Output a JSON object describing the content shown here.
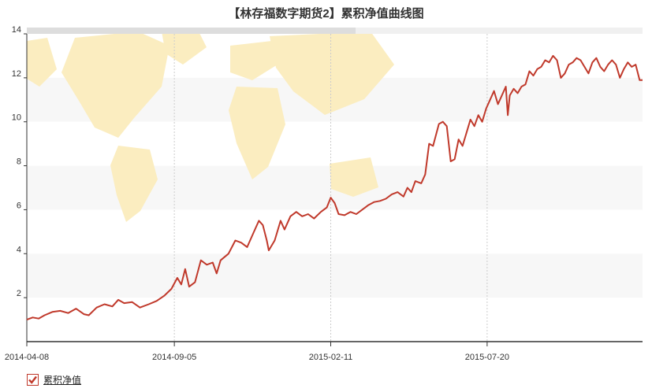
{
  "colors": {
    "line": "#c0392b",
    "band": "#f7f7f7",
    "grid": "#cccccc",
    "axis": "#333333",
    "scrollbar": "#dddddd",
    "map": "#fbedc0"
  },
  "legend": {
    "label": "累积净值",
    "checked": true
  },
  "chart_data": {
    "type": "line",
    "title": "【林存福数字期货2】累积净值曲线图",
    "xlabel": "",
    "ylabel": "",
    "x_ticks": [
      "2014-04-08",
      "2014-09-05",
      "2015-02-11",
      "2015-07-20"
    ],
    "xlim": [
      "2014-04-08",
      "2015-12-25"
    ],
    "y_ticks": [
      2,
      4,
      6,
      8,
      10,
      12,
      14
    ],
    "ylim": [
      0,
      14
    ],
    "grid": "vertical dotted at x ticks, alternating horizontal bands",
    "legend_position": "bottom-left",
    "series": [
      {
        "name": "累积净值",
        "points": [
          [
            "2014-04-08",
            1.0
          ],
          [
            "2014-04-14",
            1.1
          ],
          [
            "2014-04-20",
            1.05
          ],
          [
            "2014-04-26",
            1.2
          ],
          [
            "2014-05-04",
            1.35
          ],
          [
            "2014-05-12",
            1.4
          ],
          [
            "2014-05-20",
            1.3
          ],
          [
            "2014-05-28",
            1.5
          ],
          [
            "2014-06-05",
            1.25
          ],
          [
            "2014-06-10",
            1.2
          ],
          [
            "2014-06-18",
            1.55
          ],
          [
            "2014-06-26",
            1.7
          ],
          [
            "2014-07-04",
            1.6
          ],
          [
            "2014-07-10",
            1.9
          ],
          [
            "2014-07-16",
            1.75
          ],
          [
            "2014-07-24",
            1.8
          ],
          [
            "2014-08-01",
            1.55
          ],
          [
            "2014-08-10",
            1.7
          ],
          [
            "2014-08-18",
            1.85
          ],
          [
            "2014-08-26",
            2.1
          ],
          [
            "2014-09-02",
            2.4
          ],
          [
            "2014-09-08",
            2.9
          ],
          [
            "2014-09-12",
            2.6
          ],
          [
            "2014-09-16",
            3.3
          ],
          [
            "2014-09-20",
            2.5
          ],
          [
            "2014-09-26",
            2.7
          ],
          [
            "2014-10-02",
            3.7
          ],
          [
            "2014-10-08",
            3.5
          ],
          [
            "2014-10-14",
            3.6
          ],
          [
            "2014-10-18",
            3.1
          ],
          [
            "2014-10-22",
            3.7
          ],
          [
            "2014-10-30",
            4.0
          ],
          [
            "2014-11-06",
            4.6
          ],
          [
            "2014-11-12",
            4.5
          ],
          [
            "2014-11-18",
            4.3
          ],
          [
            "2014-11-24",
            4.9
          ],
          [
            "2014-11-30",
            5.5
          ],
          [
            "2014-12-04",
            5.3
          ],
          [
            "2014-12-08",
            4.6
          ],
          [
            "2014-12-10",
            4.15
          ],
          [
            "2014-12-16",
            4.6
          ],
          [
            "2014-12-22",
            5.5
          ],
          [
            "2014-12-26",
            5.1
          ],
          [
            "2015-01-01",
            5.7
          ],
          [
            "2015-01-07",
            5.9
          ],
          [
            "2015-01-13",
            5.7
          ],
          [
            "2015-01-19",
            5.8
          ],
          [
            "2015-01-25",
            5.6
          ],
          [
            "2015-02-01",
            5.9
          ],
          [
            "2015-02-07",
            6.1
          ],
          [
            "2015-02-11",
            6.55
          ],
          [
            "2015-02-15",
            6.3
          ],
          [
            "2015-02-19",
            5.8
          ],
          [
            "2015-02-25",
            5.75
          ],
          [
            "2015-03-03",
            5.9
          ],
          [
            "2015-03-09",
            5.8
          ],
          [
            "2015-03-15",
            6.0
          ],
          [
            "2015-03-21",
            6.2
          ],
          [
            "2015-03-27",
            6.35
          ],
          [
            "2015-04-02",
            6.4
          ],
          [
            "2015-04-08",
            6.5
          ],
          [
            "2015-04-14",
            6.7
          ],
          [
            "2015-04-20",
            6.8
          ],
          [
            "2015-04-26",
            6.6
          ],
          [
            "2015-04-30",
            7.0
          ],
          [
            "2015-05-04",
            6.8
          ],
          [
            "2015-05-08",
            7.3
          ],
          [
            "2015-05-14",
            7.2
          ],
          [
            "2015-05-18",
            7.6
          ],
          [
            "2015-05-22",
            9.0
          ],
          [
            "2015-05-26",
            8.9
          ],
          [
            "2015-06-01",
            9.9
          ],
          [
            "2015-06-05",
            10.0
          ],
          [
            "2015-06-09",
            9.8
          ],
          [
            "2015-06-13",
            8.2
          ],
          [
            "2015-06-17",
            8.3
          ],
          [
            "2015-06-21",
            9.2
          ],
          [
            "2015-06-25",
            8.9
          ],
          [
            "2015-06-29",
            9.5
          ],
          [
            "2015-07-03",
            10.1
          ],
          [
            "2015-07-07",
            9.8
          ],
          [
            "2015-07-11",
            10.3
          ],
          [
            "2015-07-15",
            10.0
          ],
          [
            "2015-07-19",
            10.6
          ],
          [
            "2015-07-23",
            11.0
          ],
          [
            "2015-07-27",
            11.4
          ],
          [
            "2015-07-31",
            10.8
          ],
          [
            "2015-08-04",
            11.2
          ],
          [
            "2015-08-08",
            11.6
          ],
          [
            "2015-08-10",
            10.3
          ],
          [
            "2015-08-12",
            11.2
          ],
          [
            "2015-08-16",
            11.5
          ],
          [
            "2015-08-20",
            11.3
          ],
          [
            "2015-08-24",
            11.6
          ],
          [
            "2015-08-28",
            11.7
          ],
          [
            "2015-09-01",
            12.3
          ],
          [
            "2015-09-05",
            12.1
          ],
          [
            "2015-09-09",
            12.4
          ],
          [
            "2015-09-13",
            12.5
          ],
          [
            "2015-09-17",
            12.8
          ],
          [
            "2015-09-21",
            12.7
          ],
          [
            "2015-09-25",
            13.0
          ],
          [
            "2015-09-29",
            12.8
          ],
          [
            "2015-10-03",
            12.0
          ],
          [
            "2015-10-07",
            12.2
          ],
          [
            "2015-10-11",
            12.6
          ],
          [
            "2015-10-15",
            12.7
          ],
          [
            "2015-10-19",
            12.9
          ],
          [
            "2015-10-23",
            12.8
          ],
          [
            "2015-10-27",
            12.5
          ],
          [
            "2015-10-31",
            12.2
          ],
          [
            "2015-11-04",
            12.7
          ],
          [
            "2015-11-08",
            12.9
          ],
          [
            "2015-11-12",
            12.5
          ],
          [
            "2015-11-16",
            12.3
          ],
          [
            "2015-11-20",
            12.6
          ],
          [
            "2015-11-24",
            12.8
          ],
          [
            "2015-11-28",
            12.6
          ],
          [
            "2015-12-02",
            12.0
          ],
          [
            "2015-12-06",
            12.4
          ],
          [
            "2015-12-10",
            12.7
          ],
          [
            "2015-12-14",
            12.5
          ],
          [
            "2015-12-18",
            12.6
          ],
          [
            "2015-12-22",
            11.9
          ],
          [
            "2015-12-25",
            11.9
          ]
        ]
      }
    ]
  }
}
